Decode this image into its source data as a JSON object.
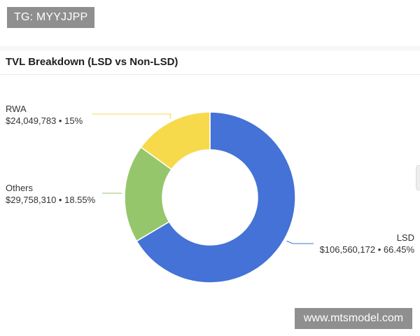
{
  "watermarks": {
    "top_left": "TG: MYYJJPP",
    "bottom_right": "www.mtsmodel.com"
  },
  "card": {
    "title": "TVL Breakdown (LSD vs Non-LSD)"
  },
  "colors": {
    "lsd": "#4472d6",
    "others": "#96c66b",
    "rwa": "#f7d94c",
    "leader_lsd": "#4472d6",
    "leader_others": "#96c66b",
    "leader_rwa": "#f7d94c"
  },
  "chart_data": {
    "type": "pie",
    "donut": true,
    "title": "TVL Breakdown (LSD vs Non-LSD)",
    "series": [
      {
        "name": "LSD",
        "value": 106560172,
        "value_label": "$106,560,172",
        "percent_label": "66.45%",
        "percent": 66.45
      },
      {
        "name": "Others",
        "value": 29758310,
        "value_label": "$29,758,310",
        "percent_label": "18.55%",
        "percent": 18.55
      },
      {
        "name": "RWA",
        "value": 24049783,
        "value_label": "$24,049,783",
        "percent_label": "15%",
        "percent": 15
      }
    ],
    "separator": "•"
  }
}
